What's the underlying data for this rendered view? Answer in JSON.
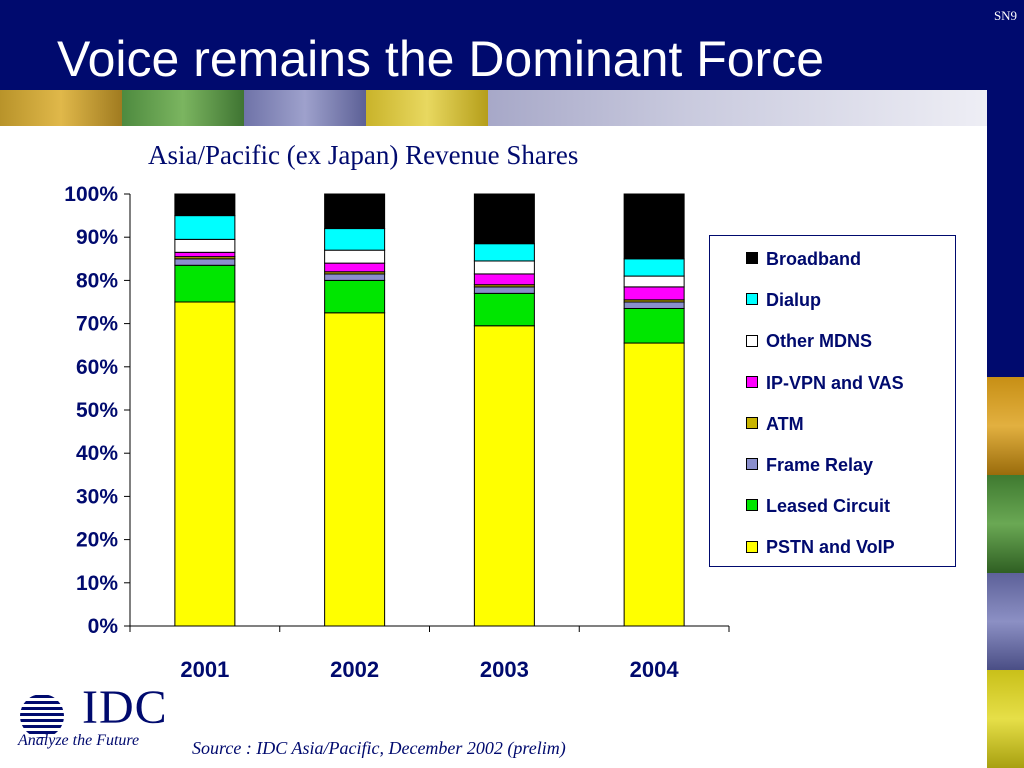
{
  "slide": {
    "title": "Voice remains the Dominant Force",
    "slide_number": "SN9",
    "source": "Source : IDC Asia/Pacific, December 2002 (prelim)",
    "logo_text": "IDC",
    "logo_tagline": "Analyze the Future"
  },
  "colors": {
    "header_bg": "#000a6e",
    "text_navy": "#000a6e"
  },
  "chart_data": {
    "type": "bar",
    "stacked": true,
    "title": "Asia/Pacific (ex Japan) Revenue Shares",
    "categories": [
      "2001",
      "2002",
      "2003",
      "2004"
    ],
    "ylim": [
      0,
      100
    ],
    "yticks": [
      "0%",
      "10%",
      "20%",
      "30%",
      "40%",
      "50%",
      "60%",
      "70%",
      "80%",
      "90%",
      "100%"
    ],
    "grid": false,
    "legend_position": "right",
    "series": [
      {
        "name": "PSTN and VoIP",
        "color": "#ffff00",
        "values": [
          75,
          72.5,
          69.5,
          65.5
        ]
      },
      {
        "name": "Leased Circuit",
        "color": "#00e600",
        "values": [
          8.5,
          7.5,
          7.5,
          8
        ]
      },
      {
        "name": "Frame Relay",
        "color": "#8a8fcc",
        "values": [
          1.5,
          1.5,
          1.5,
          1.5
        ]
      },
      {
        "name": "ATM",
        "color": "#c8b400",
        "values": [
          0.5,
          0.5,
          0.5,
          0.5
        ]
      },
      {
        "name": "IP-VPN and VAS",
        "color": "#ff00ff",
        "values": [
          1,
          2,
          2.5,
          3
        ]
      },
      {
        "name": "Other MDNS",
        "color": "#ffffff",
        "values": [
          3,
          3,
          3,
          2.5
        ]
      },
      {
        "name": "Dialup",
        "color": "#00ffff",
        "values": [
          5.5,
          5,
          4,
          4
        ]
      },
      {
        "name": "Broadband",
        "color": "#000000",
        "values": [
          5,
          8,
          11.5,
          15
        ]
      }
    ]
  }
}
